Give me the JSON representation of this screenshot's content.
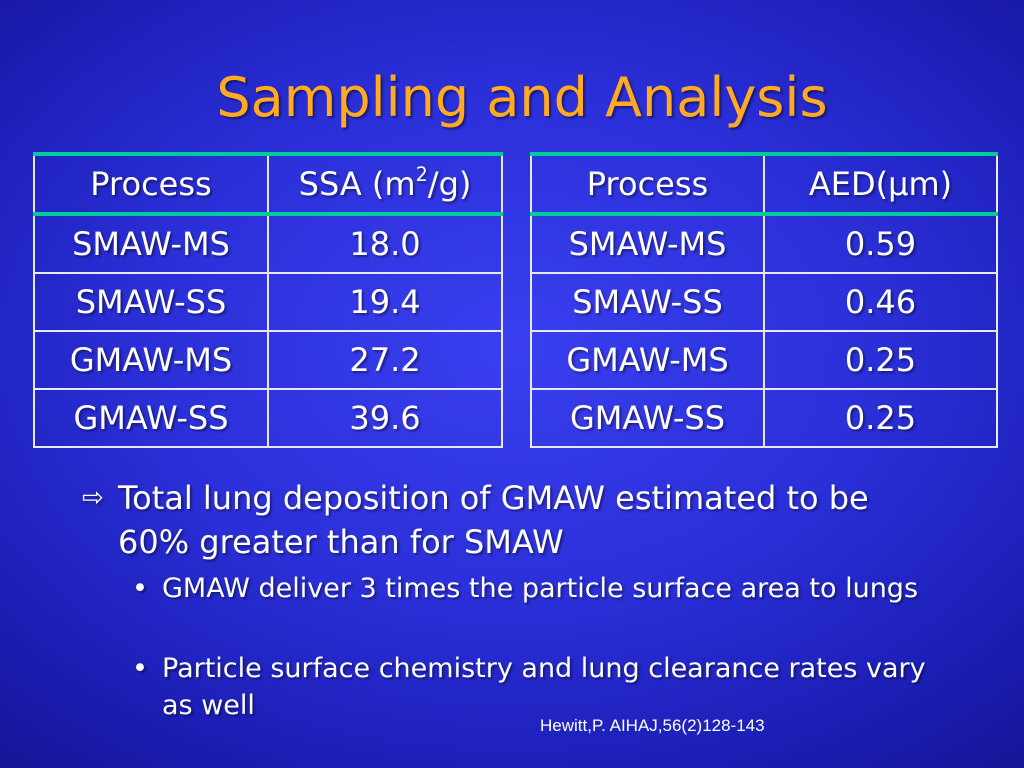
{
  "slide": {
    "title": "Sampling and Analysis",
    "colors": {
      "background": "#2a2fd8",
      "title": "#ffaa22",
      "header_rule": "#00cc99",
      "text": "#ffffff"
    }
  },
  "table1": {
    "headers": {
      "process": "Process",
      "ssa_prefix": "SSA (m",
      "ssa_sup": "2",
      "ssa_suffix": "/g)"
    },
    "rows": [
      {
        "process": "SMAW-MS",
        "value": "18.0"
      },
      {
        "process": "SMAW-SS",
        "value": "19.4"
      },
      {
        "process": "GMAW-MS",
        "value": "27.2"
      },
      {
        "process": "GMAW-SS",
        "value": "39.6"
      }
    ]
  },
  "table2": {
    "headers": {
      "process": "Process",
      "aed": "AED(μm)"
    },
    "rows": [
      {
        "process": "SMAW-MS",
        "value": "0.59"
      },
      {
        "process": "SMAW-SS",
        "value": "0.46"
      },
      {
        "process": "GMAW-MS",
        "value": "0.25"
      },
      {
        "process": "GMAW-SS",
        "value": "0.25"
      }
    ]
  },
  "bullets": {
    "main": {
      "icon": "hollow-arrow-icon",
      "text": "Total lung deposition of GMAW estimated to be 60% greater than for SMAW"
    },
    "sub": [
      {
        "text": "GMAW deliver 3 times the particle surface area to lungs"
      },
      {
        "text": "Particle surface chemistry and lung clearance rates vary as well"
      }
    ]
  },
  "citation": "Hewitt,P. AIHAJ,56(2)128-143"
}
